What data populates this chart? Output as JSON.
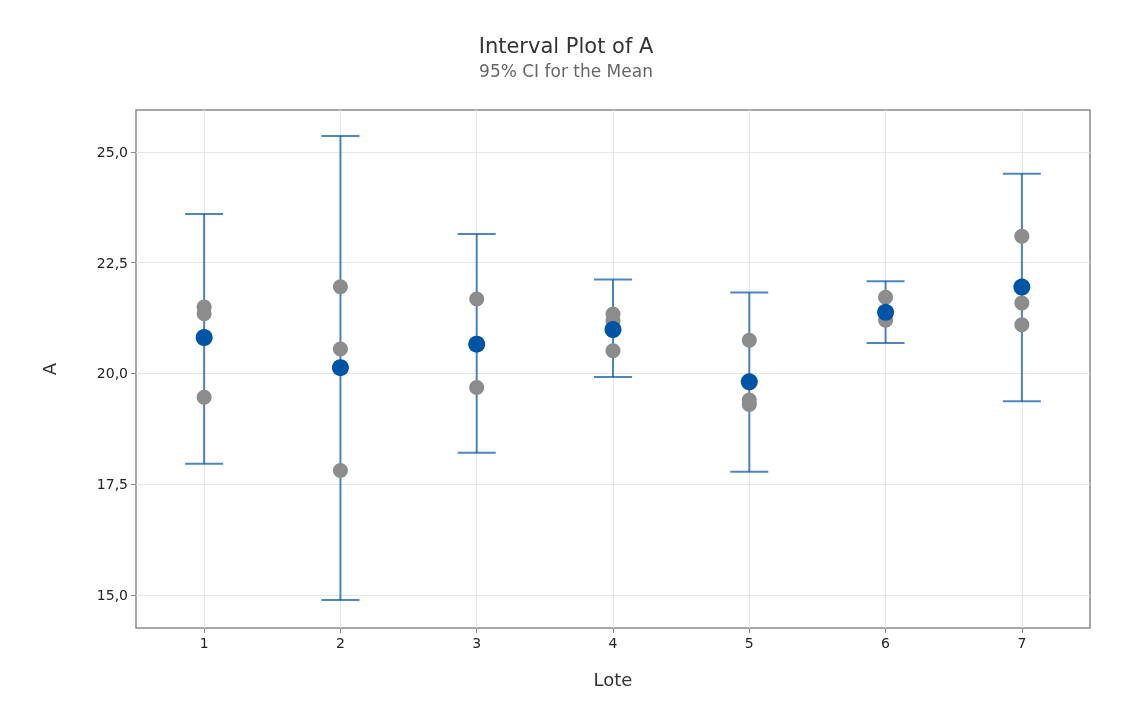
{
  "chart_data": {
    "type": "scatter",
    "title": "Interval Plot of A",
    "subtitle": "95% CI for the Mean",
    "xlabel": "Lote",
    "ylabel": "A",
    "categories": [
      "1",
      "2",
      "3",
      "4",
      "5",
      "6",
      "7"
    ],
    "series": [
      {
        "color": "#8c8c8c",
        "x": [
          "1",
          "1",
          "1",
          "2",
          "2",
          "2",
          "3",
          "3",
          "4",
          "4",
          "4",
          "5",
          "5",
          "5",
          "6",
          "6",
          "7",
          "7",
          "7"
        ],
        "values": [
          21.5,
          21.35,
          19.46,
          21.96,
          20.55,
          17.81,
          21.68,
          19.68,
          21.34,
          21.19,
          20.51,
          20.75,
          19.4,
          19.3,
          21.72,
          21.2,
          23.1,
          21.59,
          21.1
        ]
      },
      {
        "color": "#0054a6",
        "values": [
          20.81,
          20.13,
          20.66,
          20.99,
          19.81,
          21.38,
          21.95
        ],
        "errors": [
          [
            17.96,
            23.6
          ],
          [
            14.88,
            25.36
          ],
          [
            18.21,
            23.15
          ],
          [
            19.92,
            22.12
          ],
          [
            17.78,
            21.83
          ],
          [
            20.69,
            22.08
          ],
          [
            19.37,
            24.51
          ]
        ]
      }
    ],
    "ylim": [
      14.25,
      25.95
    ],
    "yticks": [
      {
        "value": 15,
        "label": "15,0"
      },
      {
        "value": 17.5,
        "label": "17,5"
      },
      {
        "value": 20,
        "label": "20,0"
      },
      {
        "value": 22.5,
        "label": "22,5"
      },
      {
        "value": 25,
        "label": "25,0"
      }
    ],
    "grid": true,
    "marker": "circle"
  }
}
